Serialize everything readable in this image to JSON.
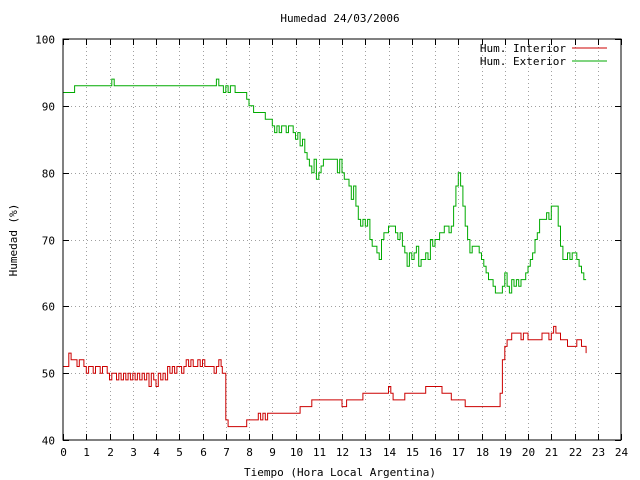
{
  "chart_data": {
    "type": "line",
    "title": "Humedad 24/03/2006",
    "xlabel": "Tiempo (Hora Local Argentina)",
    "ylabel": "Humedad (%)",
    "xlim": [
      0,
      24
    ],
    "ylim": [
      40,
      100
    ],
    "xticks": [
      0,
      1,
      2,
      3,
      4,
      5,
      6,
      7,
      8,
      9,
      10,
      11,
      12,
      13,
      14,
      15,
      16,
      17,
      18,
      19,
      20,
      21,
      22,
      23,
      24
    ],
    "yticks": [
      40,
      50,
      60,
      70,
      80,
      90,
      100
    ],
    "grid": true,
    "legend_position": "top-right",
    "series": [
      {
        "name": "Hum. Interior",
        "color": "#cc0000",
        "points": [
          [
            0.0,
            51
          ],
          [
            0.2,
            51
          ],
          [
            0.25,
            53
          ],
          [
            0.35,
            52
          ],
          [
            0.5,
            52
          ],
          [
            0.6,
            51
          ],
          [
            0.7,
            52
          ],
          [
            0.8,
            52
          ],
          [
            0.9,
            51
          ],
          [
            1.0,
            50
          ],
          [
            1.1,
            51
          ],
          [
            1.2,
            51
          ],
          [
            1.3,
            50
          ],
          [
            1.4,
            51
          ],
          [
            1.5,
            51
          ],
          [
            1.6,
            50
          ],
          [
            1.7,
            51
          ],
          [
            1.8,
            51
          ],
          [
            1.9,
            50
          ],
          [
            2.0,
            49
          ],
          [
            2.1,
            50
          ],
          [
            2.2,
            50
          ],
          [
            2.3,
            49
          ],
          [
            2.4,
            50
          ],
          [
            2.5,
            49
          ],
          [
            2.6,
            50
          ],
          [
            2.7,
            49
          ],
          [
            2.8,
            50
          ],
          [
            2.9,
            49
          ],
          [
            3.0,
            50
          ],
          [
            3.1,
            49
          ],
          [
            3.2,
            50
          ],
          [
            3.3,
            49
          ],
          [
            3.4,
            50
          ],
          [
            3.5,
            49
          ],
          [
            3.6,
            50
          ],
          [
            3.7,
            48
          ],
          [
            3.8,
            50
          ],
          [
            3.9,
            49
          ],
          [
            4.0,
            48
          ],
          [
            4.1,
            50
          ],
          [
            4.2,
            49
          ],
          [
            4.3,
            50
          ],
          [
            4.4,
            49
          ],
          [
            4.5,
            51
          ],
          [
            4.6,
            50
          ],
          [
            4.7,
            51
          ],
          [
            4.8,
            50
          ],
          [
            4.9,
            51
          ],
          [
            5.0,
            51
          ],
          [
            5.1,
            50
          ],
          [
            5.2,
            51
          ],
          [
            5.3,
            52
          ],
          [
            5.4,
            51
          ],
          [
            5.5,
            52
          ],
          [
            5.6,
            51
          ],
          [
            5.7,
            51
          ],
          [
            5.8,
            52
          ],
          [
            5.9,
            51
          ],
          [
            6.0,
            52
          ],
          [
            6.1,
            51
          ],
          [
            6.2,
            51
          ],
          [
            6.3,
            51
          ],
          [
            6.4,
            51
          ],
          [
            6.5,
            50
          ],
          [
            6.6,
            51
          ],
          [
            6.7,
            52
          ],
          [
            6.8,
            51
          ],
          [
            6.85,
            50
          ],
          [
            7.0,
            43
          ],
          [
            7.1,
            42
          ],
          [
            7.5,
            42
          ],
          [
            7.8,
            42
          ],
          [
            7.9,
            43
          ],
          [
            8.3,
            43
          ],
          [
            8.4,
            44
          ],
          [
            8.5,
            43
          ],
          [
            8.6,
            44
          ],
          [
            8.7,
            43
          ],
          [
            8.8,
            44
          ],
          [
            9.5,
            44
          ],
          [
            10.0,
            44
          ],
          [
            10.2,
            45
          ],
          [
            10.6,
            45
          ],
          [
            10.7,
            46
          ],
          [
            11.5,
            46
          ],
          [
            11.8,
            46
          ],
          [
            12.0,
            45
          ],
          [
            12.2,
            46
          ],
          [
            12.8,
            46
          ],
          [
            12.9,
            47
          ],
          [
            13.5,
            47
          ],
          [
            13.9,
            47
          ],
          [
            14.0,
            48
          ],
          [
            14.1,
            47
          ],
          [
            14.2,
            46
          ],
          [
            14.6,
            46
          ],
          [
            14.7,
            47
          ],
          [
            15.5,
            47
          ],
          [
            15.6,
            48
          ],
          [
            16.2,
            48
          ],
          [
            16.3,
            47
          ],
          [
            16.6,
            47
          ],
          [
            16.7,
            46
          ],
          [
            17.2,
            46
          ],
          [
            17.3,
            45
          ],
          [
            18.0,
            45
          ],
          [
            18.5,
            45
          ],
          [
            18.7,
            45
          ],
          [
            18.8,
            47
          ],
          [
            18.9,
            52
          ],
          [
            19.0,
            54
          ],
          [
            19.1,
            55
          ],
          [
            19.2,
            55
          ],
          [
            19.3,
            56
          ],
          [
            19.5,
            56
          ],
          [
            19.7,
            55
          ],
          [
            19.8,
            56
          ],
          [
            20.0,
            55
          ],
          [
            20.3,
            55
          ],
          [
            20.5,
            55
          ],
          [
            20.6,
            56
          ],
          [
            20.8,
            56
          ],
          [
            20.9,
            55
          ],
          [
            21.0,
            56
          ],
          [
            21.1,
            57
          ],
          [
            21.2,
            56
          ],
          [
            21.3,
            56
          ],
          [
            21.4,
            55
          ],
          [
            21.6,
            55
          ],
          [
            21.7,
            54
          ],
          [
            22.0,
            54
          ],
          [
            22.1,
            55
          ],
          [
            22.3,
            54
          ],
          [
            22.4,
            54
          ],
          [
            22.5,
            53
          ]
        ]
      },
      {
        "name": "Hum. Exterior",
        "color": "#00aa00",
        "points": [
          [
            0.0,
            92
          ],
          [
            0.4,
            92
          ],
          [
            0.5,
            93
          ],
          [
            1.0,
            93
          ],
          [
            2.0,
            93
          ],
          [
            2.1,
            94
          ],
          [
            2.2,
            93
          ],
          [
            3.0,
            93
          ],
          [
            4.0,
            93
          ],
          [
            5.0,
            93
          ],
          [
            6.0,
            93
          ],
          [
            6.5,
            93
          ],
          [
            6.6,
            94
          ],
          [
            6.7,
            93
          ],
          [
            6.8,
            93
          ],
          [
            6.9,
            92
          ],
          [
            7.0,
            93
          ],
          [
            7.1,
            92
          ],
          [
            7.2,
            93
          ],
          [
            7.3,
            93
          ],
          [
            7.4,
            92
          ],
          [
            7.8,
            92
          ],
          [
            7.9,
            91
          ],
          [
            8.0,
            90
          ],
          [
            8.2,
            89
          ],
          [
            8.6,
            89
          ],
          [
            8.7,
            88
          ],
          [
            8.9,
            88
          ],
          [
            9.0,
            87
          ],
          [
            9.1,
            86
          ],
          [
            9.2,
            87
          ],
          [
            9.3,
            86
          ],
          [
            9.4,
            87
          ],
          [
            9.5,
            87
          ],
          [
            9.6,
            86
          ],
          [
            9.7,
            87
          ],
          [
            9.8,
            87
          ],
          [
            9.9,
            86
          ],
          [
            10.0,
            85
          ],
          [
            10.1,
            86
          ],
          [
            10.2,
            84
          ],
          [
            10.3,
            85
          ],
          [
            10.4,
            83
          ],
          [
            10.5,
            82
          ],
          [
            10.6,
            81
          ],
          [
            10.7,
            80
          ],
          [
            10.8,
            82
          ],
          [
            10.9,
            79
          ],
          [
            11.0,
            80
          ],
          [
            11.1,
            81
          ],
          [
            11.2,
            82
          ],
          [
            11.5,
            82
          ],
          [
            11.7,
            82
          ],
          [
            11.8,
            80
          ],
          [
            11.9,
            82
          ],
          [
            12.0,
            80
          ],
          [
            12.1,
            79
          ],
          [
            12.2,
            79
          ],
          [
            12.3,
            78
          ],
          [
            12.4,
            76
          ],
          [
            12.5,
            78
          ],
          [
            12.6,
            75
          ],
          [
            12.7,
            73
          ],
          [
            12.8,
            72
          ],
          [
            12.9,
            73
          ],
          [
            13.0,
            72
          ],
          [
            13.1,
            73
          ],
          [
            13.2,
            70
          ],
          [
            13.3,
            69
          ],
          [
            13.4,
            69
          ],
          [
            13.5,
            68
          ],
          [
            13.6,
            67
          ],
          [
            13.7,
            70
          ],
          [
            13.8,
            71
          ],
          [
            13.9,
            71
          ],
          [
            14.0,
            72
          ],
          [
            14.2,
            72
          ],
          [
            14.3,
            71
          ],
          [
            14.4,
            70
          ],
          [
            14.5,
            71
          ],
          [
            14.6,
            69
          ],
          [
            14.7,
            68
          ],
          [
            14.8,
            66
          ],
          [
            14.9,
            68
          ],
          [
            15.0,
            67
          ],
          [
            15.1,
            68
          ],
          [
            15.2,
            69
          ],
          [
            15.3,
            66
          ],
          [
            15.4,
            67
          ],
          [
            15.5,
            67
          ],
          [
            15.6,
            68
          ],
          [
            15.7,
            67
          ],
          [
            15.8,
            70
          ],
          [
            15.9,
            69
          ],
          [
            16.0,
            70
          ],
          [
            16.2,
            71
          ],
          [
            16.4,
            72
          ],
          [
            16.6,
            71
          ],
          [
            16.7,
            72
          ],
          [
            16.8,
            75
          ],
          [
            16.9,
            78
          ],
          [
            17.0,
            80
          ],
          [
            17.1,
            78
          ],
          [
            17.2,
            75
          ],
          [
            17.3,
            72
          ],
          [
            17.4,
            70
          ],
          [
            17.5,
            68
          ],
          [
            17.6,
            69
          ],
          [
            17.8,
            69
          ],
          [
            17.9,
            68
          ],
          [
            18.0,
            67
          ],
          [
            18.1,
            66
          ],
          [
            18.2,
            65
          ],
          [
            18.3,
            64
          ],
          [
            18.4,
            64
          ],
          [
            18.5,
            63
          ],
          [
            18.6,
            62
          ],
          [
            18.8,
            62
          ],
          [
            18.9,
            63
          ],
          [
            19.0,
            65
          ],
          [
            19.1,
            63
          ],
          [
            19.2,
            62
          ],
          [
            19.3,
            64
          ],
          [
            19.4,
            63
          ],
          [
            19.5,
            64
          ],
          [
            19.6,
            63
          ],
          [
            19.7,
            64
          ],
          [
            19.8,
            64
          ],
          [
            19.9,
            65
          ],
          [
            20.0,
            66
          ],
          [
            20.1,
            67
          ],
          [
            20.2,
            68
          ],
          [
            20.3,
            70
          ],
          [
            20.4,
            71
          ],
          [
            20.5,
            73
          ],
          [
            20.6,
            73
          ],
          [
            20.7,
            73
          ],
          [
            20.8,
            74
          ],
          [
            20.9,
            73
          ],
          [
            21.0,
            75
          ],
          [
            21.2,
            75
          ],
          [
            21.3,
            72
          ],
          [
            21.4,
            69
          ],
          [
            21.5,
            67
          ],
          [
            21.6,
            67
          ],
          [
            21.7,
            68
          ],
          [
            21.8,
            67
          ],
          [
            21.9,
            68
          ],
          [
            22.0,
            68
          ],
          [
            22.1,
            67
          ],
          [
            22.2,
            66
          ],
          [
            22.3,
            65
          ],
          [
            22.4,
            64
          ],
          [
            22.5,
            64
          ]
        ]
      }
    ]
  }
}
